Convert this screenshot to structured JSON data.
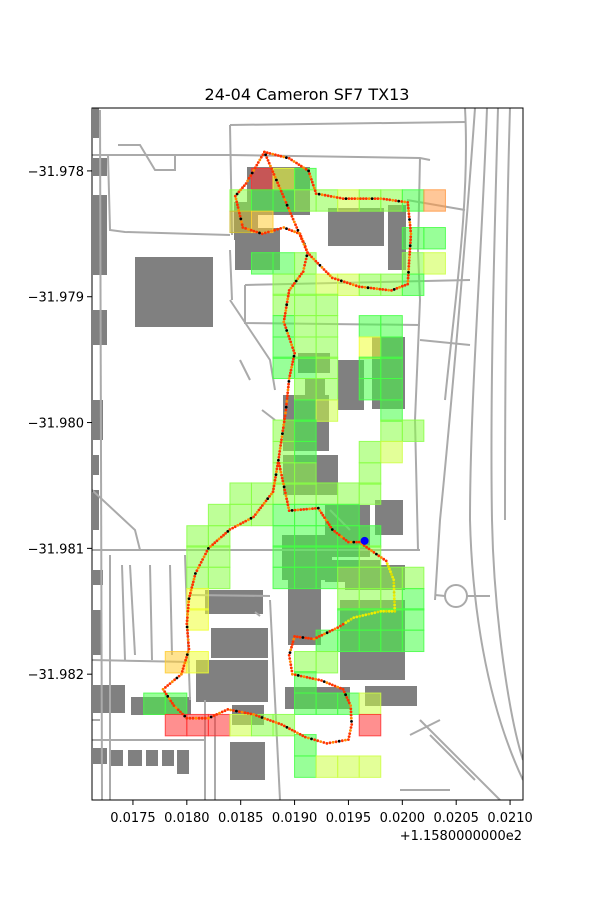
{
  "chart_data": {
    "type": "scatter",
    "title": "24-04 Cameron SF7 TX13",
    "x_offset_label": "+1.1580000000e2",
    "x_ticks": [
      0.0175,
      0.018,
      0.0185,
      0.019,
      0.0195,
      0.02,
      0.0205,
      0.021
    ],
    "x_tick_labels": [
      "0.0175",
      "0.0180",
      "0.0185",
      "0.0190",
      "0.0195",
      "0.0200",
      "0.0205",
      "0.0210"
    ],
    "y_ticks": [
      -31.978,
      -31.979,
      -31.98,
      -31.981,
      -31.982
    ],
    "y_tick_labels": [
      "−31.978",
      "−31.979",
      "−31.980",
      "−31.981",
      "−31.982"
    ],
    "xlim": [
      0.01712,
      0.02112
    ],
    "ylim": [
      -31.983,
      -31.9775
    ],
    "transmitter": {
      "x": 0.01965,
      "y": -31.98094,
      "color": "#0000ff"
    },
    "colors": {
      "map_roads": "#aaaaaa",
      "map_buildings": "#808080",
      "track_strong": "#ff3300",
      "track_weak": "#eeee00",
      "track_none": "#000000"
    },
    "cell_size": [
      0.0002,
      0.00017
    ],
    "grid_cells": [
      {
        "x": 0.0186,
        "y": -31.97798,
        "c": "#ff3333"
      },
      {
        "x": 0.0188,
        "y": -31.97798,
        "c": "#eeff33"
      },
      {
        "x": 0.019,
        "y": -31.97798,
        "c": "#44ff44"
      },
      {
        "x": 0.0184,
        "y": -31.97815,
        "c": "#88ff44"
      },
      {
        "x": 0.0186,
        "y": -31.97815,
        "c": "#44ff44"
      },
      {
        "x": 0.0188,
        "y": -31.97815,
        "c": "#44ff44"
      },
      {
        "x": 0.019,
        "y": -31.97815,
        "c": "#88ff44"
      },
      {
        "x": 0.0192,
        "y": -31.97815,
        "c": "#88ff44"
      },
      {
        "x": 0.0194,
        "y": -31.97815,
        "c": "#ccff44"
      },
      {
        "x": 0.0196,
        "y": -31.97815,
        "c": "#88ff44"
      },
      {
        "x": 0.0198,
        "y": -31.97815,
        "c": "#88ff44"
      },
      {
        "x": 0.02,
        "y": -31.97815,
        "c": "#44ff44"
      },
      {
        "x": 0.0202,
        "y": -31.97815,
        "c": "#ff9944"
      },
      {
        "x": 0.0184,
        "y": -31.97832,
        "c": "#ccbb33"
      },
      {
        "x": 0.0186,
        "y": -31.97832,
        "c": "#ffcc33"
      },
      {
        "x": 0.02,
        "y": -31.97845,
        "c": "#44ff44"
      },
      {
        "x": 0.0202,
        "y": -31.97845,
        "c": "#44ff44"
      },
      {
        "x": 0.0186,
        "y": -31.97865,
        "c": "#44ff44"
      },
      {
        "x": 0.0188,
        "y": -31.97865,
        "c": "#44ff44"
      },
      {
        "x": 0.019,
        "y": -31.97865,
        "c": "#88ff44"
      },
      {
        "x": 0.02,
        "y": -31.97865,
        "c": "#88ff44"
      },
      {
        "x": 0.0202,
        "y": -31.97865,
        "c": "#ccff44"
      },
      {
        "x": 0.0188,
        "y": -31.97882,
        "c": "#88ff44"
      },
      {
        "x": 0.019,
        "y": -31.97882,
        "c": "#88ff44"
      },
      {
        "x": 0.0192,
        "y": -31.97882,
        "c": "#ccff44"
      },
      {
        "x": 0.0194,
        "y": -31.97882,
        "c": "#ccff44"
      },
      {
        "x": 0.0196,
        "y": -31.97882,
        "c": "#88ff44"
      },
      {
        "x": 0.0198,
        "y": -31.97882,
        "c": "#88ff44"
      },
      {
        "x": 0.02,
        "y": -31.97882,
        "c": "#44ff44"
      },
      {
        "x": 0.0188,
        "y": -31.97898,
        "c": "#88ff44"
      },
      {
        "x": 0.019,
        "y": -31.97898,
        "c": "#88ff44"
      },
      {
        "x": 0.0192,
        "y": -31.97898,
        "c": "#88ff44"
      },
      {
        "x": 0.0188,
        "y": -31.97915,
        "c": "#44ff44"
      },
      {
        "x": 0.019,
        "y": -31.97915,
        "c": "#88ff44"
      },
      {
        "x": 0.0192,
        "y": -31.97915,
        "c": "#88ff44"
      },
      {
        "x": 0.0196,
        "y": -31.97915,
        "c": "#44ff44"
      },
      {
        "x": 0.0198,
        "y": -31.97915,
        "c": "#44ff44"
      },
      {
        "x": 0.0188,
        "y": -31.97932,
        "c": "#44ff44"
      },
      {
        "x": 0.019,
        "y": -31.97932,
        "c": "#88ff44"
      },
      {
        "x": 0.0192,
        "y": -31.97932,
        "c": "#88ff44"
      },
      {
        "x": 0.0196,
        "y": -31.97932,
        "c": "#eeff33"
      },
      {
        "x": 0.0198,
        "y": -31.97932,
        "c": "#44ff44"
      },
      {
        "x": 0.0188,
        "y": -31.97948,
        "c": "#44ff44"
      },
      {
        "x": 0.019,
        "y": -31.97948,
        "c": "#44ff44"
      },
      {
        "x": 0.0192,
        "y": -31.97948,
        "c": "#88ff44"
      },
      {
        "x": 0.0196,
        "y": -31.97948,
        "c": "#44ff44"
      },
      {
        "x": 0.0198,
        "y": -31.97948,
        "c": "#44ff44"
      },
      {
        "x": 0.019,
        "y": -31.97965,
        "c": "#88ff44"
      },
      {
        "x": 0.0192,
        "y": -31.97965,
        "c": "#88ff44"
      },
      {
        "x": 0.0196,
        "y": -31.97965,
        "c": "#44ff44"
      },
      {
        "x": 0.0198,
        "y": -31.97965,
        "c": "#44ff44"
      },
      {
        "x": 0.019,
        "y": -31.97982,
        "c": "#44ff44"
      },
      {
        "x": 0.0192,
        "y": -31.97982,
        "c": "#ccff44"
      },
      {
        "x": 0.0198,
        "y": -31.97982,
        "c": "#44ff44"
      },
      {
        "x": 0.0188,
        "y": -31.97998,
        "c": "#88ff44"
      },
      {
        "x": 0.019,
        "y": -31.97998,
        "c": "#44ff44"
      },
      {
        "x": 0.0198,
        "y": -31.97998,
        "c": "#88ff44"
      },
      {
        "x": 0.02,
        "y": -31.97998,
        "c": "#88ff44"
      },
      {
        "x": 0.0188,
        "y": -31.98015,
        "c": "#88ff44"
      },
      {
        "x": 0.019,
        "y": -31.98015,
        "c": "#44ff44"
      },
      {
        "x": 0.0196,
        "y": -31.98015,
        "c": "#88ff44"
      },
      {
        "x": 0.0198,
        "y": -31.98015,
        "c": "#ccff44"
      },
      {
        "x": 0.0188,
        "y": -31.98032,
        "c": "#88ff44"
      },
      {
        "x": 0.019,
        "y": -31.98032,
        "c": "#88ff44"
      },
      {
        "x": 0.0196,
        "y": -31.98032,
        "c": "#88ff44"
      },
      {
        "x": 0.0184,
        "y": -31.98048,
        "c": "#88ff44"
      },
      {
        "x": 0.0186,
        "y": -31.98048,
        "c": "#88ff44"
      },
      {
        "x": 0.0188,
        "y": -31.98048,
        "c": "#88ff44"
      },
      {
        "x": 0.019,
        "y": -31.98048,
        "c": "#88ff44"
      },
      {
        "x": 0.0192,
        "y": -31.98048,
        "c": "#88ff44"
      },
      {
        "x": 0.0194,
        "y": -31.98048,
        "c": "#88ff44"
      },
      {
        "x": 0.0196,
        "y": -31.98048,
        "c": "#88ff44"
      },
      {
        "x": 0.0182,
        "y": -31.98065,
        "c": "#88ff44"
      },
      {
        "x": 0.0184,
        "y": -31.98065,
        "c": "#88ff44"
      },
      {
        "x": 0.0186,
        "y": -31.98065,
        "c": "#88ff44"
      },
      {
        "x": 0.0188,
        "y": -31.98065,
        "c": "#44ff44"
      },
      {
        "x": 0.019,
        "y": -31.98065,
        "c": "#44ff44"
      },
      {
        "x": 0.0192,
        "y": -31.98065,
        "c": "#44ff44"
      },
      {
        "x": 0.0194,
        "y": -31.98065,
        "c": "#44ff44"
      },
      {
        "x": 0.018,
        "y": -31.98082,
        "c": "#88ff44"
      },
      {
        "x": 0.0182,
        "y": -31.98082,
        "c": "#88ff44"
      },
      {
        "x": 0.0188,
        "y": -31.98082,
        "c": "#44ff44"
      },
      {
        "x": 0.019,
        "y": -31.98082,
        "c": "#44ff44"
      },
      {
        "x": 0.0192,
        "y": -31.98082,
        "c": "#44ff44"
      },
      {
        "x": 0.0194,
        "y": -31.98082,
        "c": "#44ff44"
      },
      {
        "x": 0.0196,
        "y": -31.98082,
        "c": "#44ff44"
      },
      {
        "x": 0.018,
        "y": -31.98098,
        "c": "#88ff44"
      },
      {
        "x": 0.0182,
        "y": -31.98098,
        "c": "#88ff44"
      },
      {
        "x": 0.0188,
        "y": -31.98098,
        "c": "#44ff44"
      },
      {
        "x": 0.019,
        "y": -31.98098,
        "c": "#44ff44"
      },
      {
        "x": 0.0192,
        "y": -31.98098,
        "c": "#44ff44"
      },
      {
        "x": 0.0194,
        "y": -31.98098,
        "c": "#44ff44"
      },
      {
        "x": 0.0196,
        "y": -31.98098,
        "c": "#88ff44"
      },
      {
        "x": 0.018,
        "y": -31.98115,
        "c": "#88ff44"
      },
      {
        "x": 0.0182,
        "y": -31.98115,
        "c": "#88ff44"
      },
      {
        "x": 0.0188,
        "y": -31.98115,
        "c": "#44ff44"
      },
      {
        "x": 0.019,
        "y": -31.98115,
        "c": "#44ff44"
      },
      {
        "x": 0.0192,
        "y": -31.98115,
        "c": "#44ff44"
      },
      {
        "x": 0.0194,
        "y": -31.98115,
        "c": "#88ff44"
      },
      {
        "x": 0.0196,
        "y": -31.98115,
        "c": "#88ff44"
      },
      {
        "x": 0.0198,
        "y": -31.98115,
        "c": "#88ff44"
      },
      {
        "x": 0.02,
        "y": -31.98115,
        "c": "#88ff44"
      },
      {
        "x": 0.018,
        "y": -31.98132,
        "c": "#eeff33"
      },
      {
        "x": 0.0194,
        "y": -31.98132,
        "c": "#88ff44"
      },
      {
        "x": 0.0196,
        "y": -31.98132,
        "c": "#88ff44"
      },
      {
        "x": 0.0198,
        "y": -31.98132,
        "c": "#88ff44"
      },
      {
        "x": 0.02,
        "y": -31.98132,
        "c": "#44ff44"
      },
      {
        "x": 0.018,
        "y": -31.98148,
        "c": "#eeff33"
      },
      {
        "x": 0.0194,
        "y": -31.98148,
        "c": "#44ff44"
      },
      {
        "x": 0.0196,
        "y": -31.98148,
        "c": "#44ff44"
      },
      {
        "x": 0.0198,
        "y": -31.98148,
        "c": "#44ff44"
      },
      {
        "x": 0.02,
        "y": -31.98148,
        "c": "#44ff44"
      },
      {
        "x": 0.0192,
        "y": -31.98165,
        "c": "#44ff44"
      },
      {
        "x": 0.0194,
        "y": -31.98165,
        "c": "#44ff44"
      },
      {
        "x": 0.0196,
        "y": -31.98165,
        "c": "#44ff44"
      },
      {
        "x": 0.0198,
        "y": -31.98165,
        "c": "#44ff44"
      },
      {
        "x": 0.02,
        "y": -31.98165,
        "c": "#44ff44"
      },
      {
        "x": 0.0178,
        "y": -31.98182,
        "c": "#ffcc33"
      },
      {
        "x": 0.018,
        "y": -31.98182,
        "c": "#eeff33"
      },
      {
        "x": 0.019,
        "y": -31.98182,
        "c": "#88ff44"
      },
      {
        "x": 0.0192,
        "y": -31.98182,
        "c": "#88ff44"
      },
      {
        "x": 0.019,
        "y": -31.98198,
        "c": "#44ff44"
      },
      {
        "x": 0.0176,
        "y": -31.98215,
        "c": "#44ff44"
      },
      {
        "x": 0.0178,
        "y": -31.98215,
        "c": "#44ff44"
      },
      {
        "x": 0.019,
        "y": -31.98215,
        "c": "#44ff44"
      },
      {
        "x": 0.0192,
        "y": -31.98215,
        "c": "#44ff44"
      },
      {
        "x": 0.0194,
        "y": -31.98215,
        "c": "#44ff44"
      },
      {
        "x": 0.0196,
        "y": -31.98215,
        "c": "#ccff44"
      },
      {
        "x": 0.0178,
        "y": -31.98232,
        "c": "#ff3333"
      },
      {
        "x": 0.018,
        "y": -31.98232,
        "c": "#ff3333"
      },
      {
        "x": 0.0182,
        "y": -31.98232,
        "c": "#ff3333"
      },
      {
        "x": 0.0184,
        "y": -31.98232,
        "c": "#ccff44"
      },
      {
        "x": 0.0186,
        "y": -31.98232,
        "c": "#88ff44"
      },
      {
        "x": 0.0188,
        "y": -31.98232,
        "c": "#88ff44"
      },
      {
        "x": 0.0196,
        "y": -31.98232,
        "c": "#ff3333"
      },
      {
        "x": 0.019,
        "y": -31.98248,
        "c": "#44ff44"
      },
      {
        "x": 0.019,
        "y": -31.98265,
        "c": "#44ff44"
      },
      {
        "x": 0.0192,
        "y": -31.98265,
        "c": "#ccff44"
      },
      {
        "x": 0.0194,
        "y": -31.98265,
        "c": "#ccff44"
      },
      {
        "x": 0.0196,
        "y": -31.98265,
        "c": "#ccff44"
      }
    ],
    "route": [
      [
        0.01872,
        -31.97785
      ],
      [
        0.01895,
        -31.9779
      ],
      [
        0.01913,
        -31.978
      ],
      [
        0.0192,
        -31.97818
      ],
      [
        0.01945,
        -31.97822
      ],
      [
        0.0198,
        -31.97822
      ],
      [
        0.02005,
        -31.97825
      ],
      [
        0.02008,
        -31.9785
      ],
      [
        0.02005,
        -31.9789
      ],
      [
        0.0199,
        -31.97895
      ],
      [
        0.0196,
        -31.97892
      ],
      [
        0.01935,
        -31.97885
      ],
      [
        0.01912,
        -31.97865
      ],
      [
        0.0191,
        -31.9786
      ],
      [
        0.01905,
        -31.9785
      ],
      [
        0.0189,
        -31.97845
      ],
      [
        0.0187,
        -31.9785
      ],
      [
        0.01852,
        -31.97845
      ],
      [
        0.01845,
        -31.9782
      ],
      [
        0.01855,
        -31.9781
      ],
      [
        0.01872,
        -31.97785
      ],
      [
        0.01912,
        -31.97865
      ],
      [
        0.01908,
        -31.9788
      ],
      [
        0.01895,
        -31.97895
      ],
      [
        0.0189,
        -31.9792
      ],
      [
        0.019,
        -31.97945
      ],
      [
        0.01895,
        -31.97965
      ],
      [
        0.01892,
        -31.9799
      ],
      [
        0.01885,
        -31.9803
      ],
      [
        0.01895,
        -31.9807
      ],
      [
        0.01922,
        -31.98068
      ],
      [
        0.01935,
        -31.98085
      ],
      [
        0.0195,
        -31.98095
      ],
      [
        0.0196,
        -31.98095
      ],
      [
        0.01985,
        -31.9811
      ],
      [
        0.01992,
        -31.98125
      ],
      [
        0.01993,
        -31.9815
      ],
      [
        0.0198,
        -31.9815
      ],
      [
        0.01955,
        -31.98155
      ],
      [
        0.0194,
        -31.98163
      ],
      [
        0.01918,
        -31.98172
      ],
      [
        0.019,
        -31.9817
      ],
      [
        0.01895,
        -31.98185
      ],
      [
        0.01898,
        -31.982
      ],
      [
        0.01925,
        -31.98205
      ],
      [
        0.01945,
        -31.98212
      ],
      [
        0.01952,
        -31.98225
      ],
      [
        0.01953,
        -31.9824
      ],
      [
        0.0195,
        -31.98252
      ],
      [
        0.0193,
        -31.98255
      ],
      [
        0.0191,
        -31.9825
      ],
      [
        0.01888,
        -31.9824
      ],
      [
        0.01862,
        -31.98232
      ],
      [
        0.01838,
        -31.98228
      ],
      [
        0.0182,
        -31.98235
      ],
      [
        0.018,
        -31.98235
      ],
      [
        0.01788,
        -31.98225
      ],
      [
        0.01778,
        -31.98212
      ],
      [
        0.01795,
        -31.982
      ],
      [
        0.01802,
        -31.9818
      ],
      [
        0.018,
        -31.9816
      ],
      [
        0.01802,
        -31.9814
      ],
      [
        0.01808,
        -31.9812
      ],
      [
        0.0182,
        -31.981
      ],
      [
        0.0184,
        -31.98085
      ],
      [
        0.01862,
        -31.98075
      ],
      [
        0.0188,
        -31.98055
      ],
      [
        0.01885,
        -31.9803
      ]
    ]
  }
}
